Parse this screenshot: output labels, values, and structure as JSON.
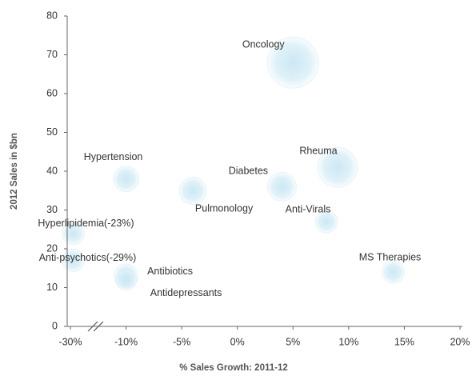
{
  "chart_data": {
    "type": "bubble",
    "x_label": "% Sales Growth: 2011-12",
    "y_label": "2012 Sales in $bn",
    "point_labels": [
      "Oncology",
      "Rheuma",
      "Diabetes",
      "Anti-Virals",
      "MS Therapies",
      "Hypertension",
      "Pulmonology",
      "Antibiotics",
      "Antidepressants",
      "Hyperlipidemia(-23%)",
      "Anti-psychotics(-29%)"
    ],
    "x": [
      5,
      9,
      4,
      8,
      14,
      -10,
      -4,
      -10,
      -10,
      -29,
      -29
    ],
    "values": [
      68,
      41,
      36,
      27,
      14,
      38,
      35,
      13,
      12,
      24,
      17
    ],
    "sizes": [
      32,
      25,
      18,
      14,
      14,
      16,
      17,
      15,
      13,
      14,
      14
    ],
    "color": "#cfe9f4",
    "xlim": [
      -30,
      20
    ],
    "ylim": [
      0,
      80
    ],
    "xticks": [
      {
        "value": -30,
        "label": "-30%"
      },
      {
        "value": -10,
        "label": "-10%"
      },
      {
        "value": -5,
        "label": "-5%"
      },
      {
        "value": 0,
        "label": "0%"
      },
      {
        "value": 5,
        "label": "5%"
      },
      {
        "value": 10,
        "label": "10%"
      },
      {
        "value": 15,
        "label": "15%"
      },
      {
        "value": 20,
        "label": "20%"
      }
    ],
    "yticks": [
      0,
      10,
      20,
      30,
      40,
      50,
      60,
      70,
      80
    ],
    "axis_break": true
  }
}
